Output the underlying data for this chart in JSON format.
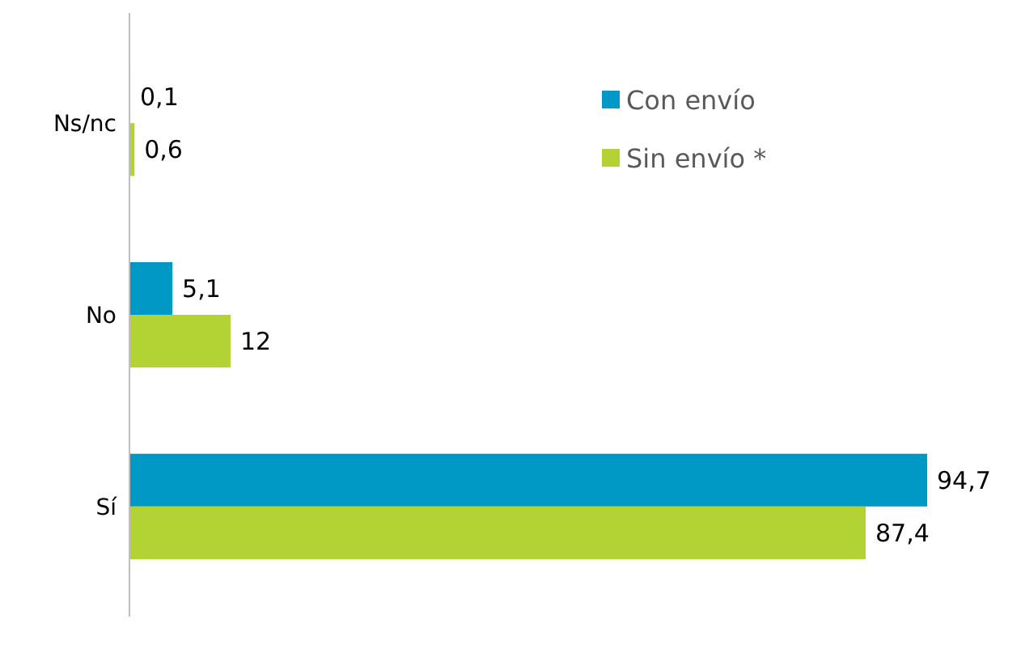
{
  "chart_data": {
    "type": "bar",
    "orientation": "horizontal",
    "categories": [
      "Ns/nc",
      "No",
      "Sí"
    ],
    "series": [
      {
        "name": "Con envío",
        "color": "#0099c6",
        "values": [
          0.1,
          5.1,
          94.7
        ],
        "value_labels": [
          "0,1",
          "5,1",
          "94,7"
        ]
      },
      {
        "name": "Sin envío *",
        "color": "#b3d335",
        "values": [
          0.6,
          12,
          87.4
        ],
        "value_labels": [
          "0,6",
          "12",
          "87,4"
        ]
      }
    ],
    "tick_labels": "y",
    "legend": "top right"
  }
}
